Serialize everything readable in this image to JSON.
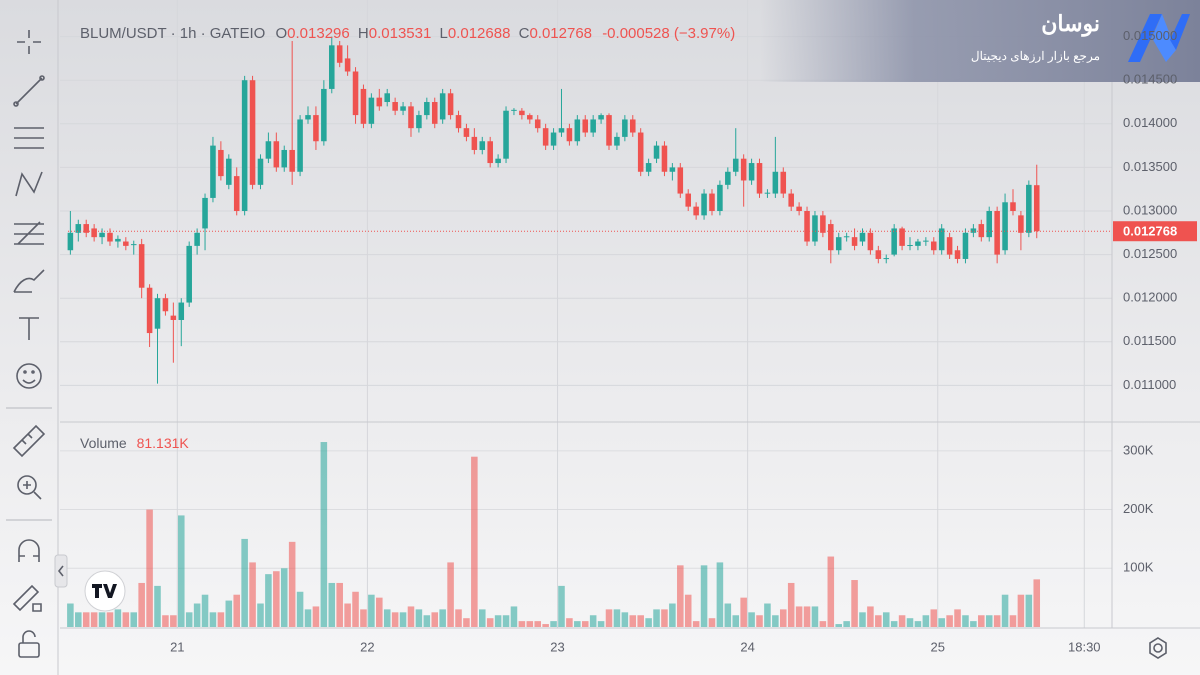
{
  "chart_data": {
    "type": "candlestick",
    "symbol": "BLUM/USDT · 1h · GATEIO",
    "ohlc_legend": [
      {
        "key": "O",
        "value": "0.013296"
      },
      {
        "key": "H",
        "value": "0.013531"
      },
      {
        "key": "L",
        "value": "0.012688"
      },
      {
        "key": "C",
        "value": "0.012768"
      }
    ],
    "change": "-0.000528 (−3.97%)",
    "volume_title": "Volume",
    "volume_value_label": "81.131K",
    "brand": "نوسان",
    "brand_subtitle": "مرجع بازار ارزهای دیجیتال",
    "up_color": "#26a69a",
    "down_color": "#ef5350",
    "ohlc": [
      [
        0.01255,
        0.013,
        0.0125,
        0.01275
      ],
      [
        0.01275,
        0.0129,
        0.01265,
        0.01285
      ],
      [
        0.01285,
        0.0129,
        0.0127,
        0.01275
      ],
      [
        0.0128,
        0.01285,
        0.01265,
        0.0127
      ],
      [
        0.0127,
        0.0128,
        0.01262,
        0.01275
      ],
      [
        0.01275,
        0.0128,
        0.0126,
        0.01265
      ],
      [
        0.01265,
        0.01272,
        0.01258,
        0.01268
      ],
      [
        0.01265,
        0.0127,
        0.01255,
        0.0126
      ],
      [
        0.01262,
        0.01266,
        0.0125,
        0.01262
      ],
      [
        0.01262,
        0.01268,
        0.012,
        0.01212
      ],
      [
        0.01212,
        0.01216,
        0.01144,
        0.0116
      ],
      [
        0.01165,
        0.01205,
        0.01102,
        0.012
      ],
      [
        0.012,
        0.01205,
        0.0118,
        0.01185
      ],
      [
        0.0118,
        0.01195,
        0.01126,
        0.01175
      ],
      [
        0.01175,
        0.012,
        0.01145,
        0.01195
      ],
      [
        0.01195,
        0.01265,
        0.0119,
        0.0126
      ],
      [
        0.0126,
        0.0128,
        0.0125,
        0.01275
      ],
      [
        0.0128,
        0.0132,
        0.01255,
        0.01315
      ],
      [
        0.01315,
        0.01385,
        0.0131,
        0.01375
      ],
      [
        0.0137,
        0.0138,
        0.01335,
        0.0134
      ],
      [
        0.0133,
        0.01365,
        0.01325,
        0.0136
      ],
      [
        0.0134,
        0.0135,
        0.01295,
        0.013
      ],
      [
        0.013,
        0.01455,
        0.01295,
        0.0145
      ],
      [
        0.0145,
        0.01455,
        0.01325,
        0.0133
      ],
      [
        0.0133,
        0.01365,
        0.01325,
        0.0136
      ],
      [
        0.0136,
        0.0139,
        0.01355,
        0.0138
      ],
      [
        0.0138,
        0.0139,
        0.01345,
        0.0135
      ],
      [
        0.0135,
        0.01375,
        0.01345,
        0.0137
      ],
      [
        0.0137,
        0.01495,
        0.0133,
        0.01345
      ],
      [
        0.01345,
        0.0141,
        0.0134,
        0.01405
      ],
      [
        0.01405,
        0.0142,
        0.014,
        0.0141
      ],
      [
        0.0141,
        0.0142,
        0.0137,
        0.0138
      ],
      [
        0.0138,
        0.0145,
        0.01375,
        0.0144
      ],
      [
        0.0144,
        0.015,
        0.01435,
        0.0149
      ],
      [
        0.0149,
        0.01495,
        0.01465,
        0.0147
      ],
      [
        0.01475,
        0.0149,
        0.01455,
        0.0146
      ],
      [
        0.0146,
        0.01465,
        0.014,
        0.0141
      ],
      [
        0.0144,
        0.01445,
        0.01395,
        0.014
      ],
      [
        0.014,
        0.01435,
        0.01395,
        0.0143
      ],
      [
        0.0143,
        0.0144,
        0.01415,
        0.0142
      ],
      [
        0.01425,
        0.0144,
        0.0142,
        0.01435
      ],
      [
        0.01425,
        0.0143,
        0.0141,
        0.01415
      ],
      [
        0.01415,
        0.01425,
        0.0141,
        0.0142
      ],
      [
        0.0142,
        0.01425,
        0.01385,
        0.01395
      ],
      [
        0.01395,
        0.01415,
        0.0139,
        0.0141
      ],
      [
        0.0141,
        0.0143,
        0.01405,
        0.01425
      ],
      [
        0.01425,
        0.0143,
        0.01395,
        0.014
      ],
      [
        0.01405,
        0.0144,
        0.014,
        0.01435
      ],
      [
        0.01435,
        0.0144,
        0.01405,
        0.0141
      ],
      [
        0.0141,
        0.01415,
        0.0139,
        0.01395
      ],
      [
        0.01395,
        0.014,
        0.0138,
        0.01385
      ],
      [
        0.01385,
        0.01395,
        0.01365,
        0.0137
      ],
      [
        0.0137,
        0.01385,
        0.01365,
        0.0138
      ],
      [
        0.0138,
        0.01385,
        0.0135,
        0.01355
      ],
      [
        0.01355,
        0.01365,
        0.0135,
        0.0136
      ],
      [
        0.0136,
        0.0142,
        0.01355,
        0.01415
      ],
      [
        0.01415,
        0.01418,
        0.0141,
        0.01416
      ],
      [
        0.01415,
        0.01418,
        0.01405,
        0.0141
      ],
      [
        0.0141,
        0.01412,
        0.014,
        0.01405
      ],
      [
        0.01405,
        0.0141,
        0.0139,
        0.01395
      ],
      [
        0.01395,
        0.014,
        0.0137,
        0.01375
      ],
      [
        0.01375,
        0.01395,
        0.0137,
        0.0139
      ],
      [
        0.0139,
        0.0144,
        0.01385,
        0.01395
      ],
      [
        0.01395,
        0.014,
        0.01375,
        0.0138
      ],
      [
        0.0138,
        0.0141,
        0.01375,
        0.01405
      ],
      [
        0.01405,
        0.0141,
        0.01385,
        0.0139
      ],
      [
        0.0139,
        0.0141,
        0.01385,
        0.01405
      ],
      [
        0.01405,
        0.01412,
        0.014,
        0.0141
      ],
      [
        0.0141,
        0.01412,
        0.0137,
        0.01375
      ],
      [
        0.01375,
        0.0139,
        0.0137,
        0.01385
      ],
      [
        0.01385,
        0.0141,
        0.0138,
        0.01405
      ],
      [
        0.01405,
        0.0141,
        0.01385,
        0.0139
      ],
      [
        0.0139,
        0.01395,
        0.0134,
        0.01345
      ],
      [
        0.01345,
        0.0136,
        0.0134,
        0.01355
      ],
      [
        0.0136,
        0.0138,
        0.01355,
        0.01375
      ],
      [
        0.01375,
        0.0138,
        0.0134,
        0.01345
      ],
      [
        0.01345,
        0.01355,
        0.01335,
        0.0135
      ],
      [
        0.0135,
        0.01355,
        0.01315,
        0.0132
      ],
      [
        0.0132,
        0.01325,
        0.013,
        0.01305
      ],
      [
        0.01305,
        0.0131,
        0.0129,
        0.01295
      ],
      [
        0.01295,
        0.01325,
        0.0129,
        0.0132
      ],
      [
        0.0132,
        0.01325,
        0.01295,
        0.013
      ],
      [
        0.013,
        0.01335,
        0.01295,
        0.0133
      ],
      [
        0.0133,
        0.0135,
        0.01325,
        0.01345
      ],
      [
        0.01345,
        0.01395,
        0.0134,
        0.0136
      ],
      [
        0.0136,
        0.01365,
        0.01305,
        0.01335
      ],
      [
        0.01335,
        0.0136,
        0.0133,
        0.01355
      ],
      [
        0.01355,
        0.0136,
        0.01315,
        0.0132
      ],
      [
        0.0132,
        0.01325,
        0.01315,
        0.01321
      ],
      [
        0.0132,
        0.01385,
        0.01315,
        0.01345
      ],
      [
        0.01345,
        0.0135,
        0.01315,
        0.0132
      ],
      [
        0.0132,
        0.01325,
        0.013,
        0.01305
      ],
      [
        0.01305,
        0.0131,
        0.01295,
        0.013
      ],
      [
        0.013,
        0.01305,
        0.0126,
        0.01265
      ],
      [
        0.01265,
        0.013,
        0.0126,
        0.01295
      ],
      [
        0.01295,
        0.013,
        0.0127,
        0.01275
      ],
      [
        0.01285,
        0.0129,
        0.0124,
        0.01255
      ],
      [
        0.01255,
        0.01275,
        0.0125,
        0.0127
      ],
      [
        0.0127,
        0.01275,
        0.01265,
        0.01271
      ],
      [
        0.0127,
        0.0128,
        0.01255,
        0.0126
      ],
      [
        0.01265,
        0.0128,
        0.0126,
        0.01275
      ],
      [
        0.01275,
        0.0128,
        0.0125,
        0.01255
      ],
      [
        0.01255,
        0.0126,
        0.0124,
        0.01245
      ],
      [
        0.01245,
        0.0125,
        0.0124,
        0.01246
      ],
      [
        0.0125,
        0.01285,
        0.01248,
        0.0128
      ],
      [
        0.0128,
        0.01282,
        0.01255,
        0.0126
      ],
      [
        0.0126,
        0.0127,
        0.01255,
        0.01261
      ],
      [
        0.0126,
        0.01268,
        0.01255,
        0.01265
      ],
      [
        0.01265,
        0.0127,
        0.0126,
        0.01266
      ],
      [
        0.01265,
        0.0127,
        0.0125,
        0.01255
      ],
      [
        0.01255,
        0.01285,
        0.0125,
        0.0128
      ],
      [
        0.0127,
        0.01275,
        0.01245,
        0.0125
      ],
      [
        0.01255,
        0.0126,
        0.0124,
        0.01245
      ],
      [
        0.01245,
        0.0128,
        0.0124,
        0.01275
      ],
      [
        0.01275,
        0.01285,
        0.0127,
        0.0128
      ],
      [
        0.01285,
        0.0129,
        0.01265,
        0.0127
      ],
      [
        0.0127,
        0.01305,
        0.01265,
        0.013
      ],
      [
        0.013,
        0.01305,
        0.0124,
        0.0125
      ],
      [
        0.01255,
        0.0132,
        0.0125,
        0.0131
      ],
      [
        0.0131,
        0.01325,
        0.01295,
        0.013
      ],
      [
        0.01295,
        0.013,
        0.01255,
        0.01275
      ],
      [
        0.01275,
        0.01335,
        0.0127,
        0.0133
      ],
      [
        0.013296,
        0.013531,
        0.012688,
        0.012768
      ]
    ],
    "volume": [
      40000,
      25000,
      25000,
      25000,
      25000,
      25000,
      30000,
      25000,
      25000,
      75000,
      200000,
      70000,
      20000,
      20000,
      190000,
      25000,
      40000,
      55000,
      25000,
      25000,
      45000,
      55000,
      150000,
      110000,
      40000,
      90000,
      95000,
      100000,
      145000,
      60000,
      30000,
      35000,
      315000,
      75000,
      75000,
      40000,
      60000,
      30000,
      55000,
      50000,
      30000,
      25000,
      25000,
      35000,
      30000,
      20000,
      25000,
      30000,
      110000,
      30000,
      15000,
      290000,
      30000,
      15000,
      20000,
      20000,
      35000,
      10000,
      10000,
      10000,
      5000,
      10000,
      70000,
      15000,
      10000,
      10000,
      20000,
      10000,
      30000,
      30000,
      25000,
      20000,
      20000,
      15000,
      30000,
      30000,
      40000,
      105000,
      55000,
      10000,
      105000,
      15000,
      110000,
      40000,
      20000,
      50000,
      25000,
      20000,
      40000,
      20000,
      30000,
      75000,
      35000,
      35000,
      35000,
      10000,
      120000,
      5000,
      10000,
      80000,
      25000,
      35000,
      20000,
      25000,
      10000,
      20000,
      15000,
      10000,
      20000,
      30000,
      15000,
      20000,
      30000,
      20000,
      10000,
      20000,
      20000,
      20000,
      55000,
      20000,
      55000,
      55000,
      81131
    ],
    "xlim": [
      -0.3,
      131.5
    ],
    "xticks": [
      {
        "value": 13.5,
        "label": "21"
      },
      {
        "value": 37.5,
        "label": "22"
      },
      {
        "value": 61.5,
        "label": "23"
      },
      {
        "value": 85.5,
        "label": "24"
      },
      {
        "value": 109.5,
        "label": "25"
      },
      {
        "value": 128,
        "label": "18:30"
      }
    ],
    "ylim": [
      0.01058,
      0.01542
    ],
    "yticks": [
      {
        "value": 0.011,
        "label": "0.011000"
      },
      {
        "value": 0.0115,
        "label": "0.011500"
      },
      {
        "value": 0.012,
        "label": "0.012000"
      },
      {
        "value": 0.0125,
        "label": "0.012500"
      },
      {
        "value": 0.013,
        "label": "0.013000"
      },
      {
        "value": 0.0135,
        "label": "0.013500"
      },
      {
        "value": 0.014,
        "label": "0.014000"
      },
      {
        "value": 0.0145,
        "label": "0.014500"
      },
      {
        "value": 0.015,
        "label": "0.015000"
      }
    ],
    "vol_ylim": [
      0,
      344000
    ],
    "vol_yticks": [
      {
        "value": 100000,
        "label": "100K"
      },
      {
        "value": 200000,
        "label": "200K"
      },
      {
        "value": 300000,
        "label": "300K"
      }
    ],
    "grid": true
  }
}
